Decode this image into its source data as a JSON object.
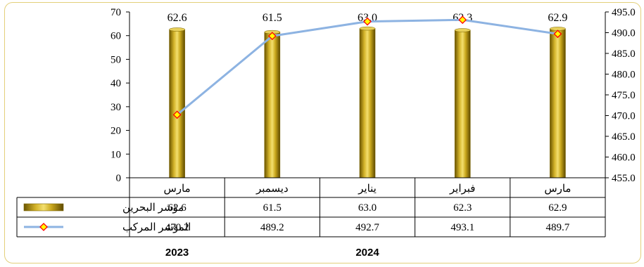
{
  "chart_data": {
    "type": "bar+line",
    "categories": [
      "مارس",
      "ديسمبر",
      "يناير",
      "فبراير",
      "مارس"
    ],
    "years": [
      "2023",
      "2024"
    ],
    "series": [
      {
        "name": "مؤشر البحرين",
        "type": "bar",
        "axis": "left",
        "values": [
          62.6,
          61.5,
          63.0,
          62.3,
          62.9
        ],
        "color": "#b8960c"
      },
      {
        "name": "المؤشر المركب",
        "type": "line",
        "axis": "right",
        "values": [
          470.2,
          489.2,
          492.7,
          493.1,
          489.7
        ],
        "color": "#8db3e2",
        "marker_fill": "#ffff00",
        "marker_stroke": "#ff0000"
      }
    ],
    "y_left": {
      "range": [
        0,
        70
      ],
      "ticks": [
        "0",
        "10",
        "20",
        "30",
        "40",
        "50",
        "60",
        "70"
      ]
    },
    "y_right": {
      "range": [
        455,
        495
      ],
      "ticks": [
        "455.0",
        "460.0",
        "465.0",
        "470.0",
        "475.0",
        "480.0",
        "485.0",
        "490.0",
        "495.0"
      ]
    },
    "bar_labels": [
      "62.6",
      "61.5",
      "63.0",
      "62.3",
      "62.9"
    ],
    "table": {
      "rows": [
        {
          "legend": "مؤشر البحرين",
          "cells": [
            "62.6",
            "61.5",
            "63.0",
            "62.3",
            "62.9"
          ]
        },
        {
          "legend": "المؤشر المركب",
          "cells": [
            "470.2",
            "489.2",
            "492.7",
            "493.1",
            "489.7"
          ]
        }
      ]
    },
    "grid": false,
    "legend": "table"
  }
}
